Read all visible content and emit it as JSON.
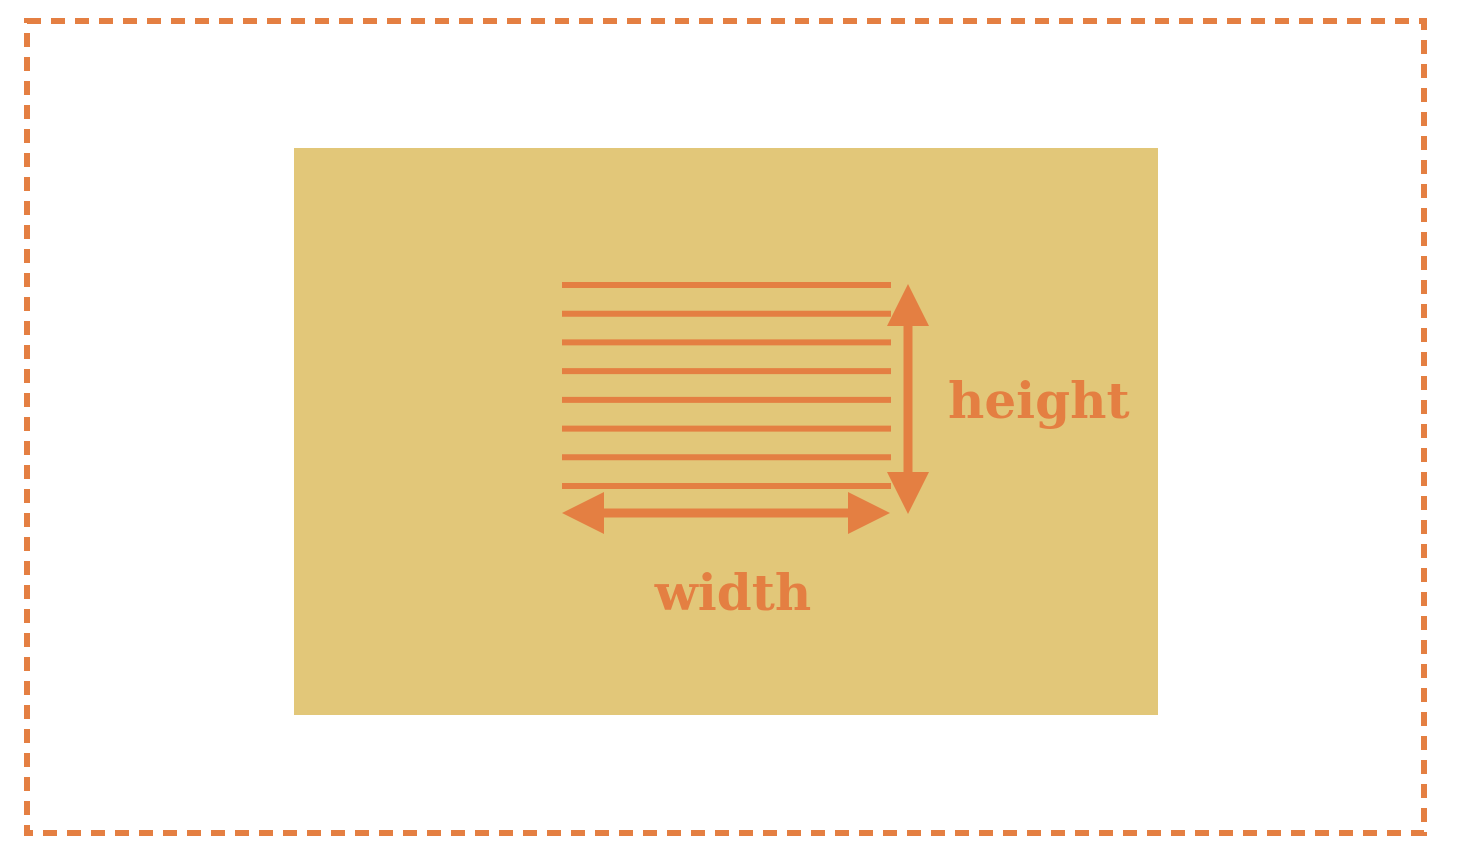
{
  "colors": {
    "accent": "#e47f42",
    "panel": "#e2c779",
    "background": "#ffffff"
  },
  "labels": {
    "height": "height",
    "width": "width"
  },
  "lines": {
    "count": 8
  }
}
